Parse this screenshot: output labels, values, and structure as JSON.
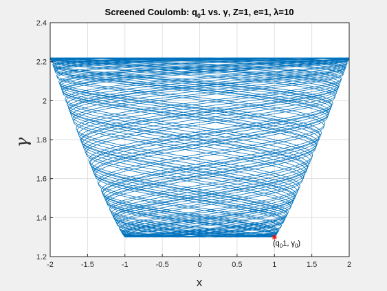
{
  "chart_data": {
    "type": "line",
    "title": "Screened Coulomb: q",
    "title_sub": "0",
    "title_rest": "1 vs. γ, Z=1, e=1, λ=10",
    "xlabel": "x",
    "ylabel": "γ",
    "xlim": [
      -2,
      2
    ],
    "ylim": [
      1.2,
      2.4
    ],
    "xticks": [
      -2,
      -1.5,
      -1,
      -0.5,
      0,
      0.5,
      1,
      1.5,
      2
    ],
    "xtick_labels": [
      "-2",
      "-1.5",
      "-1",
      "-0.5",
      "0",
      "0.5",
      "1",
      "1.5",
      "2"
    ],
    "yticks": [
      1.2,
      1.4,
      1.6,
      1.8,
      2.0,
      2.2,
      2.4
    ],
    "ytick_labels": [
      "1.2",
      "1.4",
      "1.6",
      "1.8",
      "2",
      "2.2",
      "2.4"
    ],
    "grid": true,
    "series": [
      {
        "color": "#0072BD",
        "x_range": [
          -2,
          2
        ],
        "y_range": [
          1.3,
          2.22
        ]
      }
    ],
    "start_point": {
      "x": 1.0,
      "y": 1.3,
      "marker": "*",
      "color": "#e01010"
    },
    "annotation": {
      "text_main": "(q",
      "sub1": "0",
      "text_mid": "1, γ",
      "sub2": "0",
      "text_end": ")"
    }
  }
}
